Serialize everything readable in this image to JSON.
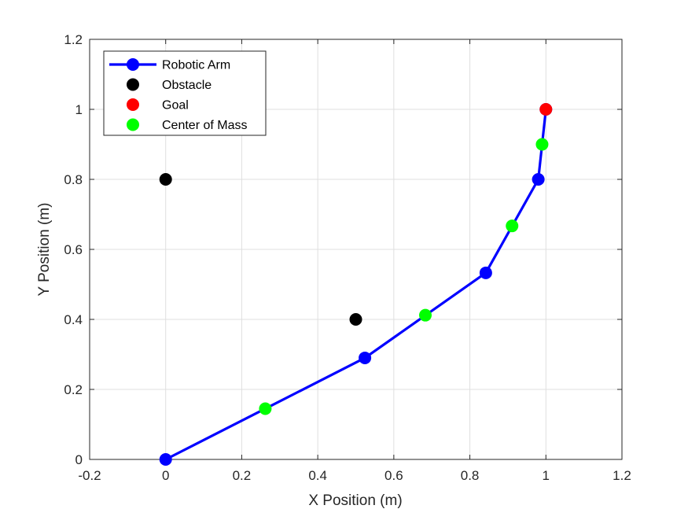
{
  "chart_data": {
    "type": "line",
    "title": "",
    "xlabel": "X Position (m)",
    "ylabel": "Y Position (m)",
    "xlim": [
      -0.2,
      1.2
    ],
    "ylim": [
      0,
      1.2
    ],
    "xticks": [
      -0.2,
      0,
      0.2,
      0.4,
      0.6,
      0.8,
      1,
      1.2
    ],
    "yticks": [
      0,
      0.2,
      0.4,
      0.6,
      0.8,
      1,
      1.2
    ],
    "xtick_labels": [
      "-0.2",
      "0",
      "0.2",
      "0.4",
      "0.6",
      "0.8",
      "1",
      "1.2"
    ],
    "ytick_labels": [
      "0",
      "0.2",
      "0.4",
      "0.6",
      "0.8",
      "1",
      "1.2"
    ],
    "grid": true,
    "legend_position": "top-left",
    "series": [
      {
        "name": "Robotic Arm",
        "style": "line-with-markers",
        "color": "#0000ff",
        "x": [
          0,
          0.524,
          0.842,
          0.98,
          1.0
        ],
        "y": [
          0,
          0.29,
          0.533,
          0.8,
          1.0
        ]
      },
      {
        "name": "Obstacle",
        "style": "markers",
        "color": "#000000",
        "x": [
          0,
          0.5
        ],
        "y": [
          0.8,
          0.4
        ]
      },
      {
        "name": "Goal",
        "style": "markers",
        "color": "#ff0000",
        "x": [
          1.0
        ],
        "y": [
          1.0
        ]
      },
      {
        "name": "Center of Mass",
        "style": "markers",
        "color": "#00ff00",
        "x": [
          0.262,
          0.683,
          0.911,
          0.99
        ],
        "y": [
          0.145,
          0.412,
          0.667,
          0.9
        ]
      }
    ]
  }
}
